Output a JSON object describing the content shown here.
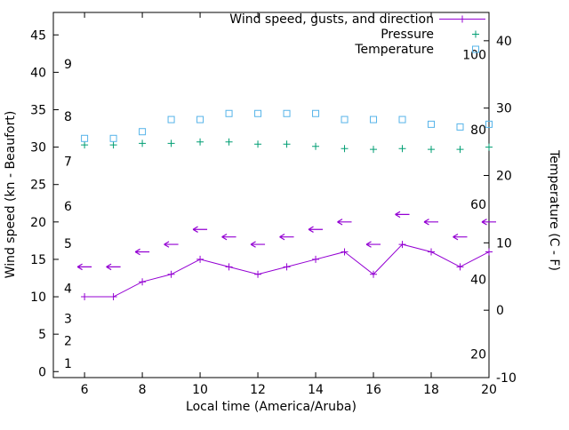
{
  "page": {
    "background": "#ffffff"
  },
  "chart_data": {
    "type": "line",
    "title": "",
    "xlabel": "Local time (America/Aruba)",
    "ylabel_left": "Wind speed (kn - Beaufort)",
    "ylabel_right": "Temperature (C - F)",
    "grid": false,
    "legend_position": "top-right-inside",
    "x_range": [
      4.92,
      20
    ],
    "y_left_range": [
      -0.8,
      48
    ],
    "y_right_range": [
      -10,
      44.2
    ],
    "x_ticks": [
      6,
      8,
      10,
      12,
      14,
      16,
      18,
      20
    ],
    "y_left_ticks": [
      0,
      5,
      10,
      15,
      20,
      25,
      30,
      35,
      40,
      45
    ],
    "y_right_ticks": [
      -10,
      0,
      10,
      20,
      30,
      40
    ],
    "beaufort_labels": [
      {
        "label": "1",
        "kn": 1
      },
      {
        "label": "2",
        "kn": 4
      },
      {
        "label": "3",
        "kn": 7
      },
      {
        "label": "4",
        "kn": 11
      },
      {
        "label": "5",
        "kn": 17
      },
      {
        "label": "6",
        "kn": 22
      },
      {
        "label": "7",
        "kn": 28
      },
      {
        "label": "8",
        "kn": 34
      },
      {
        "label": "9",
        "kn": 41
      }
    ],
    "fahrenheit_labels": [
      {
        "label": "20",
        "f": 20
      },
      {
        "label": "40",
        "f": 40
      },
      {
        "label": "60",
        "f": 60
      },
      {
        "label": "80",
        "f": 80
      },
      {
        "label": "100",
        "f": 100
      }
    ],
    "legend": [
      {
        "label": "Wind speed, gusts, and direction",
        "marker": "plus-line",
        "color": "#9400d3"
      },
      {
        "label": "Pressure",
        "marker": "plus",
        "color": "#009e73"
      },
      {
        "label": "Temperature",
        "marker": "square",
        "color": "#56b4e9"
      }
    ],
    "x_hours": [
      6,
      7,
      8,
      9,
      10,
      11,
      12,
      13,
      14,
      15,
      16,
      17,
      18,
      19,
      20
    ],
    "series": [
      {
        "name": "pressure",
        "label": "Pressure",
        "axis": "left",
        "color": "#009e73",
        "marker": "plus",
        "values": [
          30.3,
          30.3,
          30.5,
          30.5,
          30.7,
          30.7,
          30.4,
          30.4,
          30.1,
          29.8,
          29.7,
          29.8,
          29.7,
          29.7,
          30.0
        ]
      },
      {
        "name": "temperature",
        "label": "Temperature",
        "unit": "C",
        "axis": "right",
        "color": "#56b4e9",
        "marker": "square",
        "values": [
          25.5,
          25.5,
          26.5,
          28.3,
          28.3,
          29.2,
          29.2,
          29.2,
          29.2,
          28.3,
          28.3,
          28.3,
          27.6,
          27.2,
          27.6
        ]
      },
      {
        "name": "wind_speed",
        "label": "Wind speed, gusts, and direction",
        "unit": "kn",
        "axis": "left",
        "color": "#9400d3",
        "marker": "plus-line",
        "values": [
          10,
          10,
          12,
          13,
          15,
          14,
          13,
          14,
          15,
          16,
          13,
          17,
          16,
          14,
          16
        ]
      },
      {
        "name": "wind_gusts",
        "unit": "kn",
        "axis": "left",
        "color": "#9400d3",
        "marker": "arrow-left",
        "direction": "from-east",
        "values": [
          14,
          14,
          16,
          17,
          19,
          18,
          17,
          18,
          19,
          20,
          17,
          21,
          20,
          18,
          20
        ]
      }
    ]
  }
}
